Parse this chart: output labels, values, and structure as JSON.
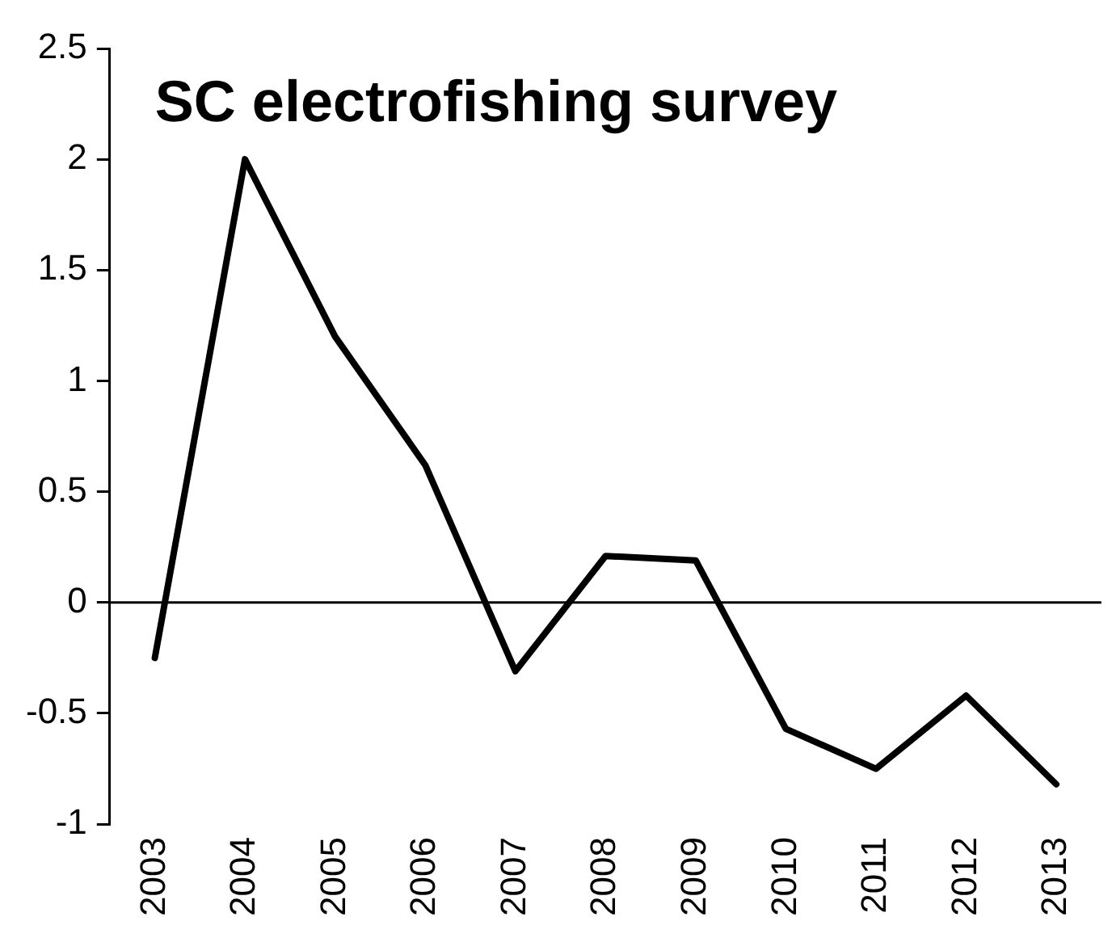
{
  "chart_data": {
    "type": "line",
    "title": "SC electrofishing survey",
    "categories": [
      "2003",
      "2004",
      "2005",
      "2006",
      "2007",
      "2008",
      "2009",
      "2010",
      "2011",
      "2012",
      "2013"
    ],
    "series": [
      {
        "color": "#000000",
        "values": [
          -0.25,
          2.0,
          1.2,
          0.62,
          -0.31,
          0.21,
          0.19,
          -0.57,
          -0.75,
          -0.42,
          -0.82
        ]
      }
    ],
    "ylim": [
      -1,
      2.5
    ],
    "yticks": [
      -1,
      {
        "value": -0.5,
        "label": "-0.5"
      },
      0,
      {
        "value": 0.5,
        "label": "0.5"
      },
      1,
      {
        "value": 1.5,
        "label": "1.5"
      },
      2,
      {
        "value": 2.5,
        "label": "2.5"
      }
    ],
    "ref_lines": [
      {
        "axis": "y",
        "value": 0,
        "color": "#000000"
      }
    ],
    "grid": false,
    "legend": false,
    "marker": "none",
    "line_style": "solid"
  }
}
